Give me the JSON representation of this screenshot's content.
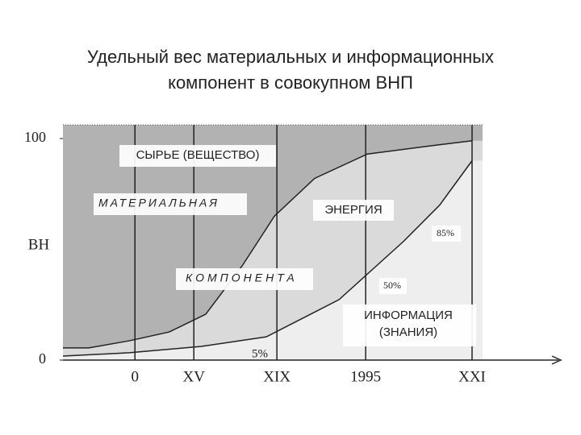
{
  "chart_data": {
    "type": "area",
    "title": [
      "Удельный вес материальных и информационных",
      "компонент в совокупном ВНП"
    ],
    "y_label": "ВН",
    "ylim": [
      0,
      100
    ],
    "yticks": [
      0,
      100
    ],
    "xlim": [
      0,
      100
    ],
    "xticks": [
      {
        "value": 17.6,
        "label": "0"
      },
      {
        "value": 32,
        "label": "XV"
      },
      {
        "value": 52.3,
        "label": "XIX"
      },
      {
        "value": 74,
        "label": "1995"
      },
      {
        "value": 100,
        "label": "XXI"
      }
    ],
    "background": "#b2b2b2",
    "line_color": "#222222",
    "series": [
      {
        "color": "#dadada",
        "x": [
          0,
          6.3,
          16.2,
          26,
          34.9,
          43.8,
          51.7,
          61.5,
          74.4,
          91.1,
          100
        ],
        "values": [
          5.5,
          5.5,
          8.7,
          12.7,
          20.7,
          42.5,
          65,
          82,
          93,
          97,
          99
        ]
      },
      {
        "color": "#eeeeee",
        "x": [
          0,
          16.2,
          33.9,
          49.7,
          67.5,
          83.2,
          92.1,
          100
        ],
        "values": [
          1.8,
          3.3,
          6.2,
          10.5,
          27.3,
          53.5,
          70,
          90
        ]
      }
    ],
    "annotations": [
      "СЫРЬЕ (ВЕЩЕСТВО)",
      "МАТЕРИАЛЬНАЯ",
      "ЭНЕРГИЯ",
      "85%",
      "КОМПОНЕНТА",
      "50%",
      "ИНФОРМАЦИЯ",
      "(ЗНАНИЯ)",
      "5%"
    ]
  }
}
